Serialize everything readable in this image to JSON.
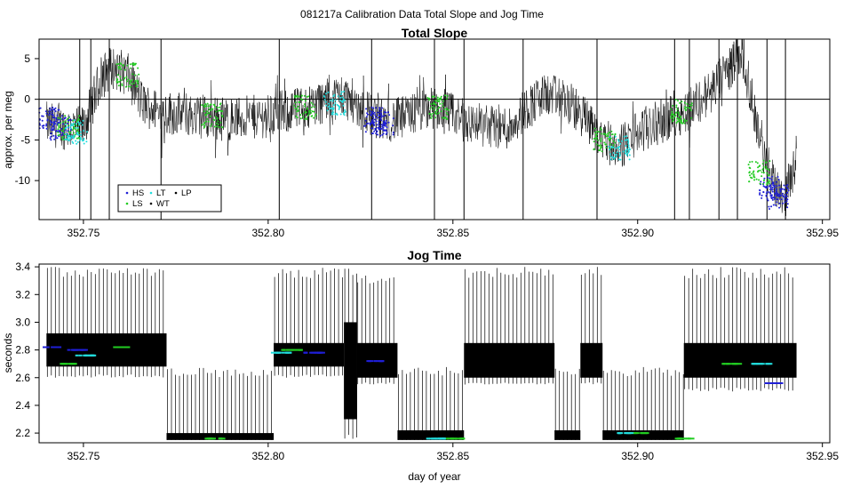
{
  "super_title": "081217a   Calibration Data Total Slope and Jog Time",
  "colors": {
    "HS": "#1f1fd6",
    "LS": "#22cc22",
    "LT": "#22dddd",
    "WT": "#000000",
    "LP": "#000000",
    "trace": "#000000"
  },
  "chart_data": [
    {
      "type": "line",
      "title": "Total Slope",
      "xlabel": "",
      "ylabel": "approx. per meg",
      "xlim": [
        352.738,
        352.952
      ],
      "ylim": [
        -14.8,
        7.4
      ],
      "xticks": [
        352.75,
        352.8,
        352.85,
        352.9,
        352.95
      ],
      "xtick_labels": [
        "352.75",
        "352.80",
        "352.85",
        "352.90",
        "352.95"
      ],
      "yticks": [
        -10,
        -5,
        0,
        5
      ],
      "ytick_labels": [
        "-10",
        "-5",
        "0",
        "5"
      ],
      "reference_line_y": 0,
      "legend": {
        "placement": "bottom-left",
        "entries": [
          "HS",
          "LT",
          "LP",
          "LS",
          "WT"
        ]
      },
      "series": [
        {
          "label": "trace",
          "x": [
            352.74,
            352.745,
            352.75,
            352.752,
            352.755,
            352.758,
            352.762,
            352.766,
            352.77,
            352.78,
            352.79,
            352.8,
            352.81,
            352.82,
            352.83,
            352.835,
            352.845,
            352.855,
            352.865,
            352.87,
            352.875,
            352.88,
            352.885,
            352.89,
            352.895,
            352.9,
            352.905,
            352.91,
            352.915,
            352.92,
            352.925,
            352.928,
            352.93,
            352.935,
            352.94,
            352.943
          ],
          "y": [
            -3,
            -3.5,
            -3.5,
            -1,
            3,
            4,
            3,
            -0.5,
            -1.5,
            -2,
            -2.5,
            -2,
            -1,
            0.5,
            -2.5,
            -2.5,
            -1,
            -3,
            -3.5,
            -1,
            0.5,
            0,
            -2,
            -4.5,
            -6,
            -4,
            -3,
            -2,
            -1,
            1,
            4,
            6,
            2,
            -9,
            -12,
            -7
          ]
        },
        {
          "label": "HS",
          "x": [
            352.741,
            352.744,
            352.829,
            352.831,
            352.936,
            352.938
          ],
          "y": [
            -2.5,
            -3.5,
            -2.5,
            -3,
            -11,
            -12
          ]
        },
        {
          "label": "LS",
          "x": [
            352.746,
            352.762,
            352.785,
            352.81,
            352.846,
            352.891,
            352.912,
            352.933
          ],
          "y": [
            -3.5,
            3,
            -2,
            -1,
            -1,
            -5,
            -1.5,
            -9
          ]
        },
        {
          "label": "LT",
          "x": [
            352.748,
            352.818,
            352.895
          ],
          "y": [
            -4,
            -0.5,
            -6
          ]
        }
      ],
      "spikes_x": [
        352.749,
        352.752,
        352.757,
        352.771,
        352.803,
        352.828,
        352.845,
        352.853,
        352.869,
        352.889,
        352.91,
        352.914,
        352.922,
        352.927,
        352.935,
        352.94
      ]
    },
    {
      "type": "line",
      "title": "Jog Time",
      "xlabel": "day of year",
      "ylabel": "seconds",
      "xlim": [
        352.738,
        352.952
      ],
      "ylim": [
        2.13,
        3.42
      ],
      "xticks": [
        352.75,
        352.8,
        352.85,
        352.9,
        352.95
      ],
      "xtick_labels": [
        "352.75",
        "352.80",
        "352.85",
        "352.90",
        "352.95"
      ],
      "yticks": [
        2.2,
        2.4,
        2.6,
        2.8,
        3.0,
        3.2,
        3.4
      ],
      "ytick_labels": [
        "2.2",
        "2.4",
        "2.6",
        "2.8",
        "3.0",
        "3.2",
        "3.4"
      ],
      "segments": [
        {
          "x0": 352.74,
          "x1": 352.7725,
          "low": 2.68,
          "high": 2.92,
          "spike_top": 3.4,
          "spike_bottom": 2.6
        },
        {
          "x0": 352.7725,
          "x1": 352.8015,
          "low": 2.15,
          "high": 2.2,
          "spike_top": 2.67,
          "spike_bottom": 2.15
        },
        {
          "x0": 352.8015,
          "x1": 352.8205,
          "low": 2.68,
          "high": 2.85,
          "spike_top": 3.4,
          "spike_bottom": 2.6
        },
        {
          "x0": 352.8205,
          "x1": 352.824,
          "low": 2.3,
          "high": 3.0,
          "spike_top": 3.4,
          "spike_bottom": 2.15
        },
        {
          "x0": 352.824,
          "x1": 352.835,
          "low": 2.6,
          "high": 2.85,
          "spike_top": 3.35,
          "spike_bottom": 2.55
        },
        {
          "x0": 352.835,
          "x1": 352.853,
          "low": 2.15,
          "high": 2.22,
          "spike_top": 2.68,
          "spike_bottom": 2.15
        },
        {
          "x0": 352.853,
          "x1": 352.8775,
          "low": 2.6,
          "high": 2.85,
          "spike_top": 3.4,
          "spike_bottom": 2.55
        },
        {
          "x0": 352.8775,
          "x1": 352.8845,
          "low": 2.15,
          "high": 2.22,
          "spike_top": 2.68,
          "spike_bottom": 2.15
        },
        {
          "x0": 352.8845,
          "x1": 352.8905,
          "low": 2.6,
          "high": 2.85,
          "spike_top": 3.4,
          "spike_bottom": 2.55
        },
        {
          "x0": 352.8905,
          "x1": 352.9125,
          "low": 2.15,
          "high": 2.22,
          "spike_top": 2.68,
          "spike_bottom": 2.15
        },
        {
          "x0": 352.9125,
          "x1": 352.943,
          "low": 2.6,
          "high": 2.85,
          "spike_top": 3.4,
          "spike_bottom": 2.5
        }
      ],
      "markers": [
        {
          "label": "HS",
          "x": [
            352.741,
            352.748,
            352.812,
            352.829,
            352.936
          ],
          "y": [
            2.82,
            2.8,
            2.78,
            2.72,
            2.56
          ]
        },
        {
          "label": "LS",
          "x": [
            352.745,
            352.76,
            352.785,
            352.806,
            352.85,
            352.9,
            352.912,
            352.925
          ],
          "y": [
            2.7,
            2.82,
            2.16,
            2.8,
            2.16,
            2.2,
            2.16,
            2.7
          ]
        },
        {
          "label": "LT",
          "x": [
            352.75,
            352.803,
            352.845,
            352.896,
            352.933
          ],
          "y": [
            2.76,
            2.78,
            2.16,
            2.2,
            2.7
          ]
        }
      ]
    }
  ]
}
